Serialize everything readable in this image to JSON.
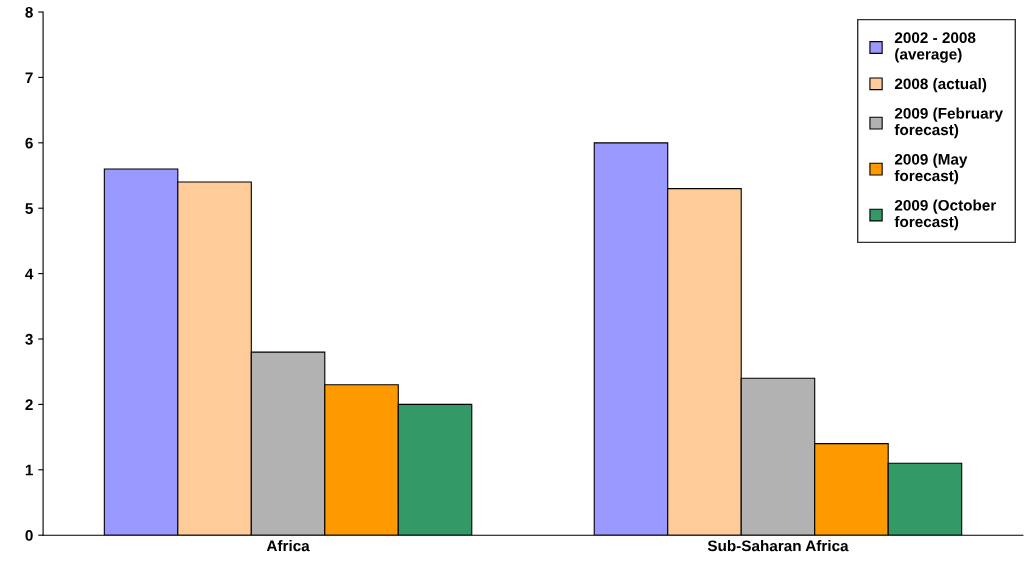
{
  "chart_data": {
    "type": "bar",
    "categories": [
      "Africa",
      "Sub-Saharan Africa"
    ],
    "series": [
      {
        "name": "2002 - 2008\n(average)",
        "color": "#9999ff",
        "values": [
          5.6,
          6.0
        ]
      },
      {
        "name": "2008 (actual)",
        "color": "#ffcc99",
        "values": [
          5.4,
          5.3
        ]
      },
      {
        "name": "2009 (February\nforecast)",
        "color": "#b2b2b2",
        "values": [
          2.8,
          2.4
        ]
      },
      {
        "name": "2009 (May\nforecast)",
        "color": "#ff9900",
        "values": [
          2.3,
          1.4
        ]
      },
      {
        "name": "2009 (October\nforecast)",
        "color": "#339966",
        "values": [
          2.0,
          1.1
        ]
      }
    ],
    "ylim": [
      0,
      8
    ],
    "yticks": [
      0,
      1,
      2,
      3,
      4,
      5,
      6,
      7,
      8
    ],
    "grid": false,
    "legend": "top right"
  }
}
